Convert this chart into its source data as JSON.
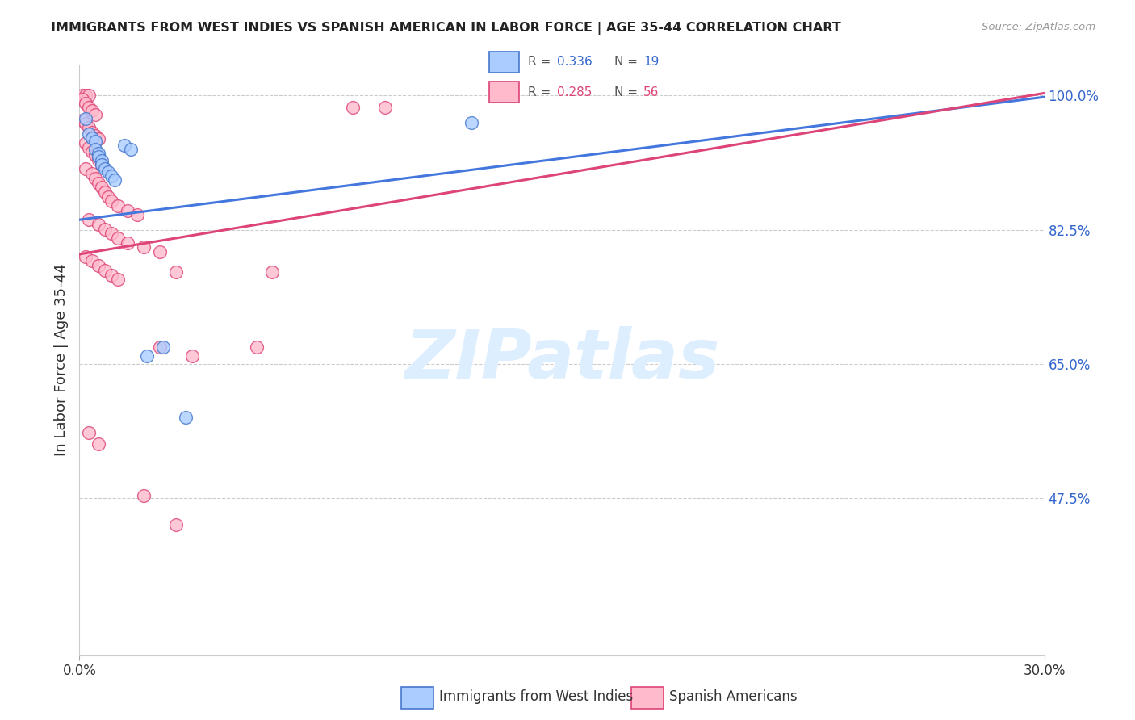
{
  "title": "IMMIGRANTS FROM WEST INDIES VS SPANISH AMERICAN IN LABOR FORCE | AGE 35-44 CORRELATION CHART",
  "source": "Source: ZipAtlas.com",
  "ylabel": "In Labor Force | Age 35-44",
  "xlim": [
    0.0,
    0.3
  ],
  "ylim": [
    0.27,
    1.04
  ],
  "yticks": [
    1.0,
    0.825,
    0.65,
    0.475
  ],
  "ytick_labels": [
    "100.0%",
    "82.5%",
    "65.0%",
    "47.5%"
  ],
  "legend_blue_r": "0.336",
  "legend_blue_n": "19",
  "legend_pink_r": "0.285",
  "legend_pink_n": "56",
  "legend_label_blue": "Immigrants from West Indies",
  "legend_label_pink": "Spanish Americans",
  "blue_scatter_color": "#aaccff",
  "blue_edge_color": "#4477cc",
  "pink_scatter_color": "#ffbbcc",
  "pink_edge_color": "#dd4477",
  "trendline_blue_color": "#4477dd",
  "trendline_pink_color": "#dd4477",
  "right_axis_color": "#3366cc",
  "watermark_color": "#ddeeff",
  "blue_x": [
    0.002,
    0.003,
    0.004,
    0.005,
    0.005,
    0.006,
    0.006,
    0.007,
    0.007,
    0.008,
    0.009,
    0.01,
    0.011,
    0.014,
    0.016,
    0.021,
    0.026,
    0.033,
    0.122
  ],
  "blue_y": [
    0.97,
    0.95,
    0.945,
    0.94,
    0.93,
    0.925,
    0.92,
    0.915,
    0.91,
    0.905,
    0.9,
    0.895,
    0.89,
    0.935,
    0.93,
    0.66,
    0.672,
    0.58,
    0.965
  ],
  "pink_x": [
    0.001,
    0.002,
    0.003,
    0.001,
    0.002,
    0.003,
    0.004,
    0.005,
    0.001,
    0.002,
    0.003,
    0.004,
    0.005,
    0.006,
    0.002,
    0.003,
    0.004,
    0.005,
    0.006,
    0.007,
    0.002,
    0.004,
    0.005,
    0.006,
    0.007,
    0.008,
    0.009,
    0.01,
    0.012,
    0.015,
    0.018,
    0.003,
    0.006,
    0.008,
    0.01,
    0.012,
    0.015,
    0.02,
    0.025,
    0.002,
    0.004,
    0.006,
    0.008,
    0.01,
    0.012,
    0.025,
    0.035,
    0.055,
    0.03,
    0.06,
    0.003,
    0.006,
    0.02,
    0.03,
    0.085,
    0.095
  ],
  "pink_y": [
    1.0,
    1.0,
    1.0,
    0.995,
    0.99,
    0.985,
    0.98,
    0.975,
    0.968,
    0.963,
    0.958,
    0.952,
    0.948,
    0.943,
    0.938,
    0.932,
    0.927,
    0.922,
    0.916,
    0.91,
    0.904,
    0.898,
    0.892,
    0.886,
    0.88,
    0.874,
    0.868,
    0.862,
    0.856,
    0.85,
    0.844,
    0.838,
    0.832,
    0.826,
    0.82,
    0.814,
    0.808,
    0.802,
    0.796,
    0.79,
    0.784,
    0.778,
    0.772,
    0.766,
    0.76,
    0.672,
    0.66,
    0.672,
    0.77,
    0.77,
    0.56,
    0.545,
    0.478,
    0.44,
    0.985,
    0.985
  ],
  "blue_trend_x": [
    0.0,
    0.3
  ],
  "blue_trend_y": [
    0.838,
    0.998
  ],
  "pink_trend_x": [
    0.0,
    0.3
  ],
  "pink_trend_y": [
    0.793,
    1.003
  ]
}
